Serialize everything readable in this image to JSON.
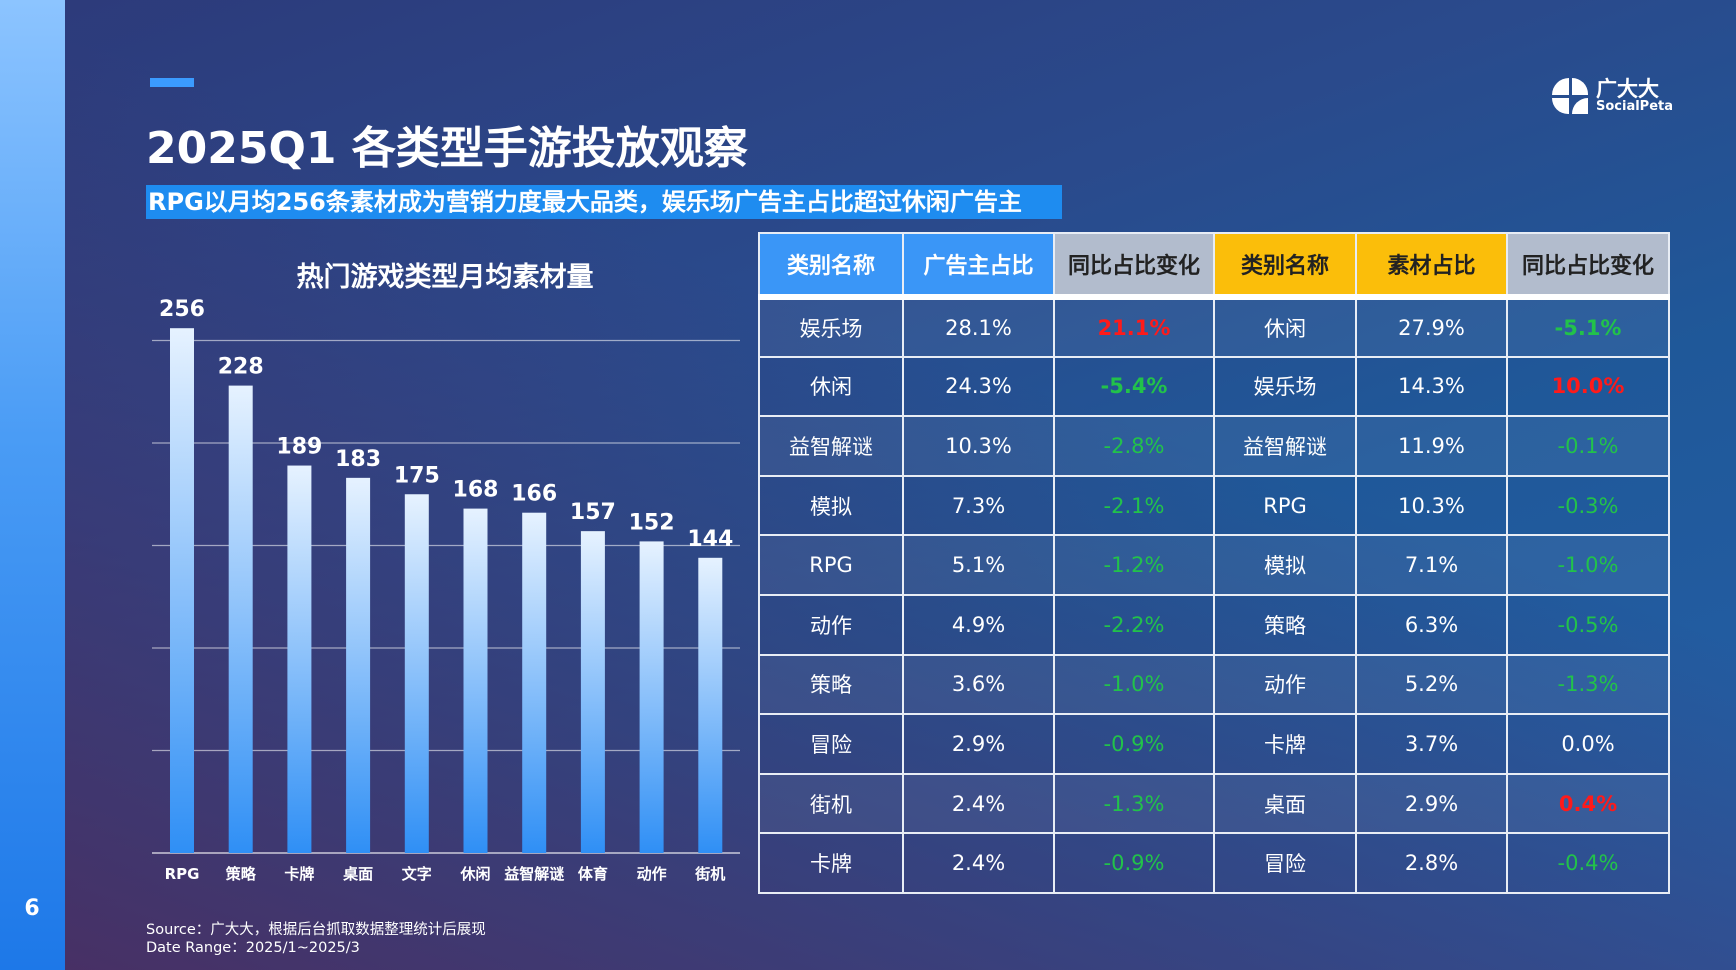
{
  "page_number": "6",
  "title": "2025Q1 各类型手游投放观察",
  "subtitle": "RPG以月均256条素材成为营销力度最大品类，娱乐场广告主占比超过休闲广告主",
  "logo": {
    "cn": "广大大",
    "en": "SocialPeta"
  },
  "source": "Source：广大大，根据后台抓取数据整理统计后展现",
  "date_range": "Date Range：2025/1~2025/3",
  "colors": {
    "bar_top": "#e6f2ff",
    "bar_bottom": "#2f8ff5",
    "header_blue": "#3a96f7",
    "header_yellow": "#fbbe0a",
    "up": "#ff1a1a",
    "down": "#22c24a"
  },
  "chart_data": {
    "type": "bar",
    "title": "热门游戏类型月均素材量",
    "categories": [
      "RPG",
      "策略",
      "卡牌",
      "桌面",
      "文字",
      "休闲",
      "益智解谜",
      "体育",
      "动作",
      "街机"
    ],
    "values": [
      256,
      228,
      189,
      183,
      175,
      168,
      166,
      157,
      152,
      144
    ],
    "ylim": [
      0,
      280
    ],
    "gridlines": [
      0,
      50,
      100,
      150,
      200,
      250
    ],
    "xlabel": "",
    "ylabel": ""
  },
  "table": {
    "headers": [
      "类别名称",
      "广告主占比",
      "同比占比变化",
      "类别名称",
      "素材占比",
      "同比占比变化"
    ],
    "rows": [
      [
        "娱乐场",
        "28.1%",
        "21.1%",
        "休闲",
        "27.9%",
        "-5.1%"
      ],
      [
        "休闲",
        "24.3%",
        "-5.4%",
        "娱乐场",
        "14.3%",
        "10.0%"
      ],
      [
        "益智解谜",
        "10.3%",
        "-2.8%",
        "益智解谜",
        "11.9%",
        "-0.1%"
      ],
      [
        "模拟",
        "7.3%",
        "-2.1%",
        "RPG",
        "10.3%",
        "-0.3%"
      ],
      [
        "RPG",
        "5.1%",
        "-1.2%",
        "模拟",
        "7.1%",
        "-1.0%"
      ],
      [
        "动作",
        "4.9%",
        "-2.2%",
        "策略",
        "6.3%",
        "-0.5%"
      ],
      [
        "策略",
        "3.6%",
        "-1.0%",
        "动作",
        "5.2%",
        "-1.3%"
      ],
      [
        "冒险",
        "2.9%",
        "-0.9%",
        "卡牌",
        "3.7%",
        "0.0%"
      ],
      [
        "街机",
        "2.4%",
        "-1.3%",
        "桌面",
        "2.9%",
        "0.4%"
      ],
      [
        "卡牌",
        "2.4%",
        "-0.9%",
        "冒险",
        "2.8%",
        "-0.4%"
      ]
    ]
  }
}
